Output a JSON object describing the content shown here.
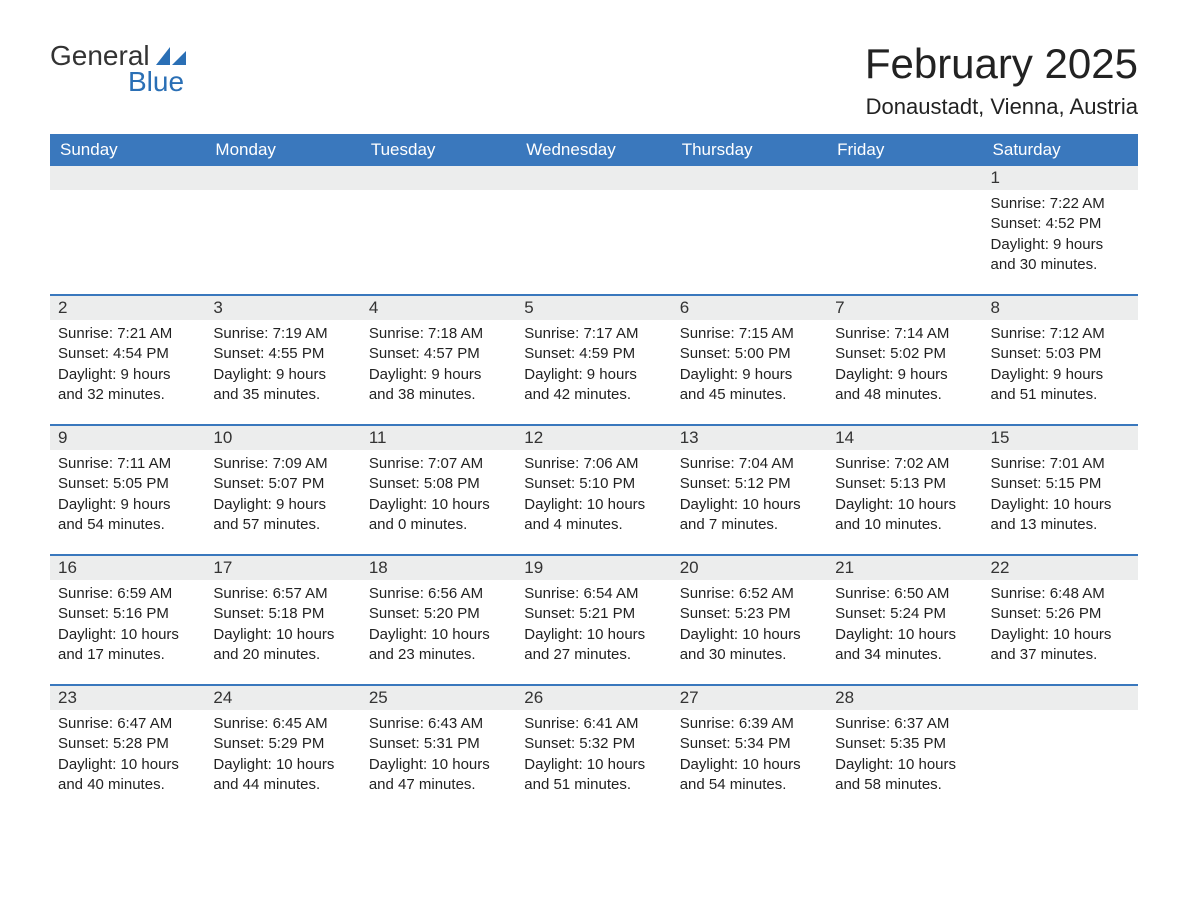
{
  "logo": {
    "text1": "General",
    "text2": "Blue",
    "sail_color": "#2a6fb5"
  },
  "title": "February 2025",
  "location": "Donaustadt, Vienna, Austria",
  "colors": {
    "header_bg": "#3a78bd",
    "header_text": "#ffffff",
    "row_divider": "#3a78bd",
    "daynum_bg": "#eceded",
    "body_text": "#222222",
    "background": "#ffffff"
  },
  "day_headers": [
    "Sunday",
    "Monday",
    "Tuesday",
    "Wednesday",
    "Thursday",
    "Friday",
    "Saturday"
  ],
  "weeks": [
    [
      {
        "blank": true
      },
      {
        "blank": true
      },
      {
        "blank": true
      },
      {
        "blank": true
      },
      {
        "blank": true
      },
      {
        "blank": true
      },
      {
        "day": "1",
        "sunrise": "Sunrise: 7:22 AM",
        "sunset": "Sunset: 4:52 PM",
        "daylight1": "Daylight: 9 hours",
        "daylight2": "and 30 minutes."
      }
    ],
    [
      {
        "day": "2",
        "sunrise": "Sunrise: 7:21 AM",
        "sunset": "Sunset: 4:54 PM",
        "daylight1": "Daylight: 9 hours",
        "daylight2": "and 32 minutes."
      },
      {
        "day": "3",
        "sunrise": "Sunrise: 7:19 AM",
        "sunset": "Sunset: 4:55 PM",
        "daylight1": "Daylight: 9 hours",
        "daylight2": "and 35 minutes."
      },
      {
        "day": "4",
        "sunrise": "Sunrise: 7:18 AM",
        "sunset": "Sunset: 4:57 PM",
        "daylight1": "Daylight: 9 hours",
        "daylight2": "and 38 minutes."
      },
      {
        "day": "5",
        "sunrise": "Sunrise: 7:17 AM",
        "sunset": "Sunset: 4:59 PM",
        "daylight1": "Daylight: 9 hours",
        "daylight2": "and 42 minutes."
      },
      {
        "day": "6",
        "sunrise": "Sunrise: 7:15 AM",
        "sunset": "Sunset: 5:00 PM",
        "daylight1": "Daylight: 9 hours",
        "daylight2": "and 45 minutes."
      },
      {
        "day": "7",
        "sunrise": "Sunrise: 7:14 AM",
        "sunset": "Sunset: 5:02 PM",
        "daylight1": "Daylight: 9 hours",
        "daylight2": "and 48 minutes."
      },
      {
        "day": "8",
        "sunrise": "Sunrise: 7:12 AM",
        "sunset": "Sunset: 5:03 PM",
        "daylight1": "Daylight: 9 hours",
        "daylight2": "and 51 minutes."
      }
    ],
    [
      {
        "day": "9",
        "sunrise": "Sunrise: 7:11 AM",
        "sunset": "Sunset: 5:05 PM",
        "daylight1": "Daylight: 9 hours",
        "daylight2": "and 54 minutes."
      },
      {
        "day": "10",
        "sunrise": "Sunrise: 7:09 AM",
        "sunset": "Sunset: 5:07 PM",
        "daylight1": "Daylight: 9 hours",
        "daylight2": "and 57 minutes."
      },
      {
        "day": "11",
        "sunrise": "Sunrise: 7:07 AM",
        "sunset": "Sunset: 5:08 PM",
        "daylight1": "Daylight: 10 hours",
        "daylight2": "and 0 minutes."
      },
      {
        "day": "12",
        "sunrise": "Sunrise: 7:06 AM",
        "sunset": "Sunset: 5:10 PM",
        "daylight1": "Daylight: 10 hours",
        "daylight2": "and 4 minutes."
      },
      {
        "day": "13",
        "sunrise": "Sunrise: 7:04 AM",
        "sunset": "Sunset: 5:12 PM",
        "daylight1": "Daylight: 10 hours",
        "daylight2": "and 7 minutes."
      },
      {
        "day": "14",
        "sunrise": "Sunrise: 7:02 AM",
        "sunset": "Sunset: 5:13 PM",
        "daylight1": "Daylight: 10 hours",
        "daylight2": "and 10 minutes."
      },
      {
        "day": "15",
        "sunrise": "Sunrise: 7:01 AM",
        "sunset": "Sunset: 5:15 PM",
        "daylight1": "Daylight: 10 hours",
        "daylight2": "and 13 minutes."
      }
    ],
    [
      {
        "day": "16",
        "sunrise": "Sunrise: 6:59 AM",
        "sunset": "Sunset: 5:16 PM",
        "daylight1": "Daylight: 10 hours",
        "daylight2": "and 17 minutes."
      },
      {
        "day": "17",
        "sunrise": "Sunrise: 6:57 AM",
        "sunset": "Sunset: 5:18 PM",
        "daylight1": "Daylight: 10 hours",
        "daylight2": "and 20 minutes."
      },
      {
        "day": "18",
        "sunrise": "Sunrise: 6:56 AM",
        "sunset": "Sunset: 5:20 PM",
        "daylight1": "Daylight: 10 hours",
        "daylight2": "and 23 minutes."
      },
      {
        "day": "19",
        "sunrise": "Sunrise: 6:54 AM",
        "sunset": "Sunset: 5:21 PM",
        "daylight1": "Daylight: 10 hours",
        "daylight2": "and 27 minutes."
      },
      {
        "day": "20",
        "sunrise": "Sunrise: 6:52 AM",
        "sunset": "Sunset: 5:23 PM",
        "daylight1": "Daylight: 10 hours",
        "daylight2": "and 30 minutes."
      },
      {
        "day": "21",
        "sunrise": "Sunrise: 6:50 AM",
        "sunset": "Sunset: 5:24 PM",
        "daylight1": "Daylight: 10 hours",
        "daylight2": "and 34 minutes."
      },
      {
        "day": "22",
        "sunrise": "Sunrise: 6:48 AM",
        "sunset": "Sunset: 5:26 PM",
        "daylight1": "Daylight: 10 hours",
        "daylight2": "and 37 minutes."
      }
    ],
    [
      {
        "day": "23",
        "sunrise": "Sunrise: 6:47 AM",
        "sunset": "Sunset: 5:28 PM",
        "daylight1": "Daylight: 10 hours",
        "daylight2": "and 40 minutes."
      },
      {
        "day": "24",
        "sunrise": "Sunrise: 6:45 AM",
        "sunset": "Sunset: 5:29 PM",
        "daylight1": "Daylight: 10 hours",
        "daylight2": "and 44 minutes."
      },
      {
        "day": "25",
        "sunrise": "Sunrise: 6:43 AM",
        "sunset": "Sunset: 5:31 PM",
        "daylight1": "Daylight: 10 hours",
        "daylight2": "and 47 minutes."
      },
      {
        "day": "26",
        "sunrise": "Sunrise: 6:41 AM",
        "sunset": "Sunset: 5:32 PM",
        "daylight1": "Daylight: 10 hours",
        "daylight2": "and 51 minutes."
      },
      {
        "day": "27",
        "sunrise": "Sunrise: 6:39 AM",
        "sunset": "Sunset: 5:34 PM",
        "daylight1": "Daylight: 10 hours",
        "daylight2": "and 54 minutes."
      },
      {
        "day": "28",
        "sunrise": "Sunrise: 6:37 AM",
        "sunset": "Sunset: 5:35 PM",
        "daylight1": "Daylight: 10 hours",
        "daylight2": "and 58 minutes."
      },
      {
        "blank": true
      }
    ]
  ]
}
